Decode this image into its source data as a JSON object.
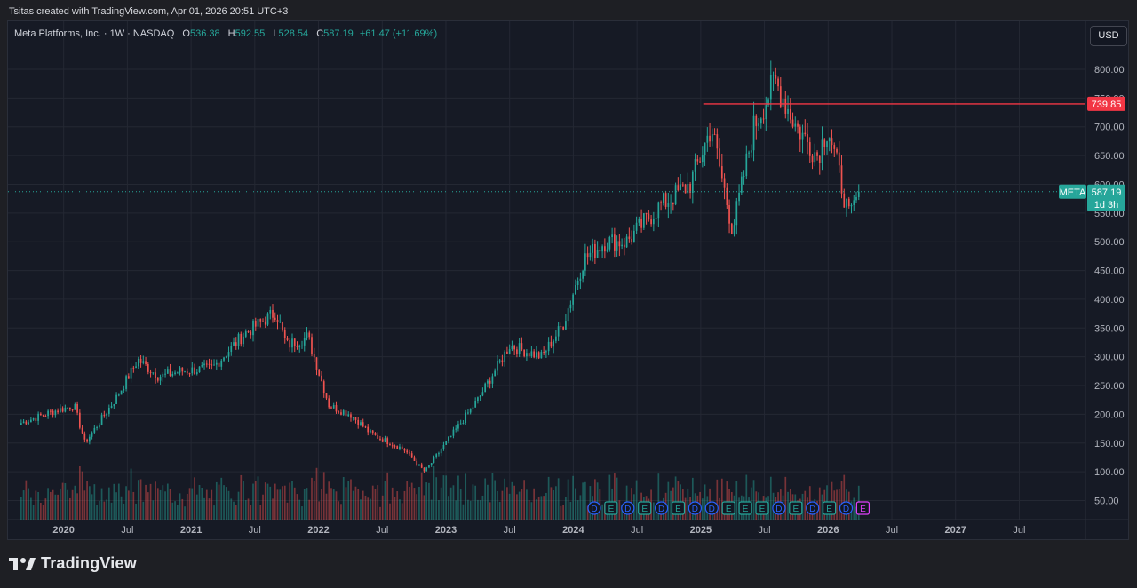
{
  "header": {
    "attribution": "Tsitas created with TradingView.com, Apr 01, 2026 20:51 UTC+3"
  },
  "legend": {
    "symbol_info": "Meta Platforms, Inc. · 1W · NASDAQ",
    "o_label": "O",
    "o_value": "536.38",
    "h_label": "H",
    "h_value": "592.55",
    "l_label": "L",
    "l_value": "528.54",
    "c_label": "C",
    "c_value": "587.19",
    "change": "+61.47 (+11.69%)"
  },
  "currency_button": "USD",
  "price_labels": {
    "horizontal_line_value": "739.85",
    "ticker": "META",
    "last_price": "587.19",
    "countdown": "1d 3h"
  },
  "brand": {
    "name": "TradingView"
  },
  "colors": {
    "up": "#26a69a",
    "down": "#ef5350",
    "line": "#f23645",
    "background": "#161a25"
  },
  "chart_data": {
    "type": "candlestick",
    "interval": "1W",
    "y_axis": {
      "ticks": [
        50,
        100,
        150,
        200,
        250,
        300,
        350,
        400,
        450,
        500,
        550,
        600,
        650,
        700,
        750,
        800
      ],
      "ylim": [
        25,
        820
      ]
    },
    "x_axis": {
      "ticks": [
        {
          "label": "2020",
          "bold": true
        },
        {
          "label": "Jul",
          "bold": false
        },
        {
          "label": "2021",
          "bold": true
        },
        {
          "label": "Jul",
          "bold": false
        },
        {
          "label": "2022",
          "bold": true
        },
        {
          "label": "Jul",
          "bold": false
        },
        {
          "label": "2023",
          "bold": true
        },
        {
          "label": "Jul",
          "bold": false
        },
        {
          "label": "2024",
          "bold": true
        },
        {
          "label": "Jul",
          "bold": false
        },
        {
          "label": "2025",
          "bold": true
        },
        {
          "label": "Jul",
          "bold": false
        },
        {
          "label": "2026",
          "bold": true
        },
        {
          "label": "Jul",
          "bold": false
        },
        {
          "label": "2027",
          "bold": true
        },
        {
          "label": "Jul",
          "bold": false
        }
      ]
    },
    "horizontal_line": 739.85,
    "last_price": 587.19,
    "price_path": [
      [
        "2019-09",
        185
      ],
      [
        "2019-12",
        205
      ],
      [
        "2020-02",
        215
      ],
      [
        "2020-03",
        150
      ],
      [
        "2020-06",
        230
      ],
      [
        "2020-08",
        295
      ],
      [
        "2020-10",
        265
      ],
      [
        "2020-12",
        275
      ],
      [
        "2021-03",
        280
      ],
      [
        "2021-06",
        340
      ],
      [
        "2021-09",
        378
      ],
      [
        "2021-10",
        320
      ],
      [
        "2021-12",
        335
      ],
      [
        "2022-02",
        215
      ],
      [
        "2022-04",
        200
      ],
      [
        "2022-06",
        165
      ],
      [
        "2022-09",
        140
      ],
      [
        "2022-11",
        100
      ],
      [
        "2023-01",
        150
      ],
      [
        "2023-04",
        225
      ],
      [
        "2023-07",
        320
      ],
      [
        "2023-10",
        300
      ],
      [
        "2023-12",
        355
      ],
      [
        "2024-02",
        470
      ],
      [
        "2024-04",
        500
      ],
      [
        "2024-06",
        500
      ],
      [
        "2024-09",
        560
      ],
      [
        "2024-12",
        600
      ],
      [
        "2025-02",
        700
      ],
      [
        "2025-04",
        520
      ],
      [
        "2025-06",
        700
      ],
      [
        "2025-08",
        780
      ],
      [
        "2025-10",
        700
      ],
      [
        "2025-12",
        650
      ],
      [
        "2026-01",
        700
      ],
      [
        "2026-03",
        540
      ],
      [
        "2026-03-28",
        587.19
      ]
    ],
    "event_markers": [
      "D",
      "E",
      "D",
      "E",
      "D",
      "E",
      "D",
      "D",
      "E",
      "E",
      "E",
      "D",
      "E",
      "D",
      "E",
      "D",
      "E"
    ]
  }
}
